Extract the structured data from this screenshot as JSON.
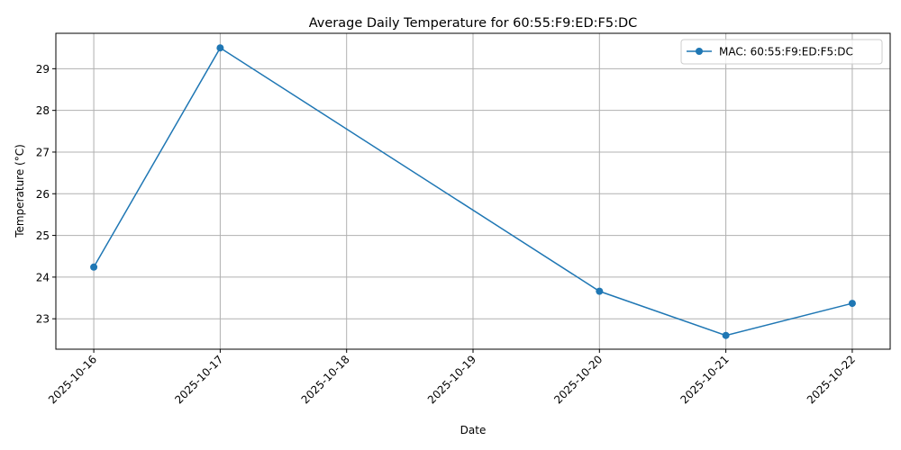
{
  "chart_data": {
    "type": "line",
    "title": "Average Daily Temperature for 60:55:F9:ED:F5:DC",
    "xlabel": "Date",
    "ylabel": "Temperature (°C)",
    "x_ticks": [
      "2025-10-16",
      "2025-10-17",
      "2025-10-18",
      "2025-10-19",
      "2025-10-20",
      "2025-10-21",
      "2025-10-22"
    ],
    "y_ticks": [
      23,
      24,
      25,
      26,
      27,
      28,
      29
    ],
    "ylim": [
      22.27,
      29.85
    ],
    "xlim": [
      "2025-10-15",
      "2025-10-22"
    ],
    "grid": true,
    "legend_position": "top-right",
    "series": [
      {
        "name": "MAC: 60:55:F9:ED:F5:DC",
        "color": "#1f77b4",
        "marker": "circle",
        "x": [
          "2025-10-16",
          "2025-10-17",
          "2025-10-20",
          "2025-10-21",
          "2025-10-22"
        ],
        "values": [
          24.24,
          29.5,
          23.66,
          22.6,
          23.37
        ]
      }
    ]
  }
}
